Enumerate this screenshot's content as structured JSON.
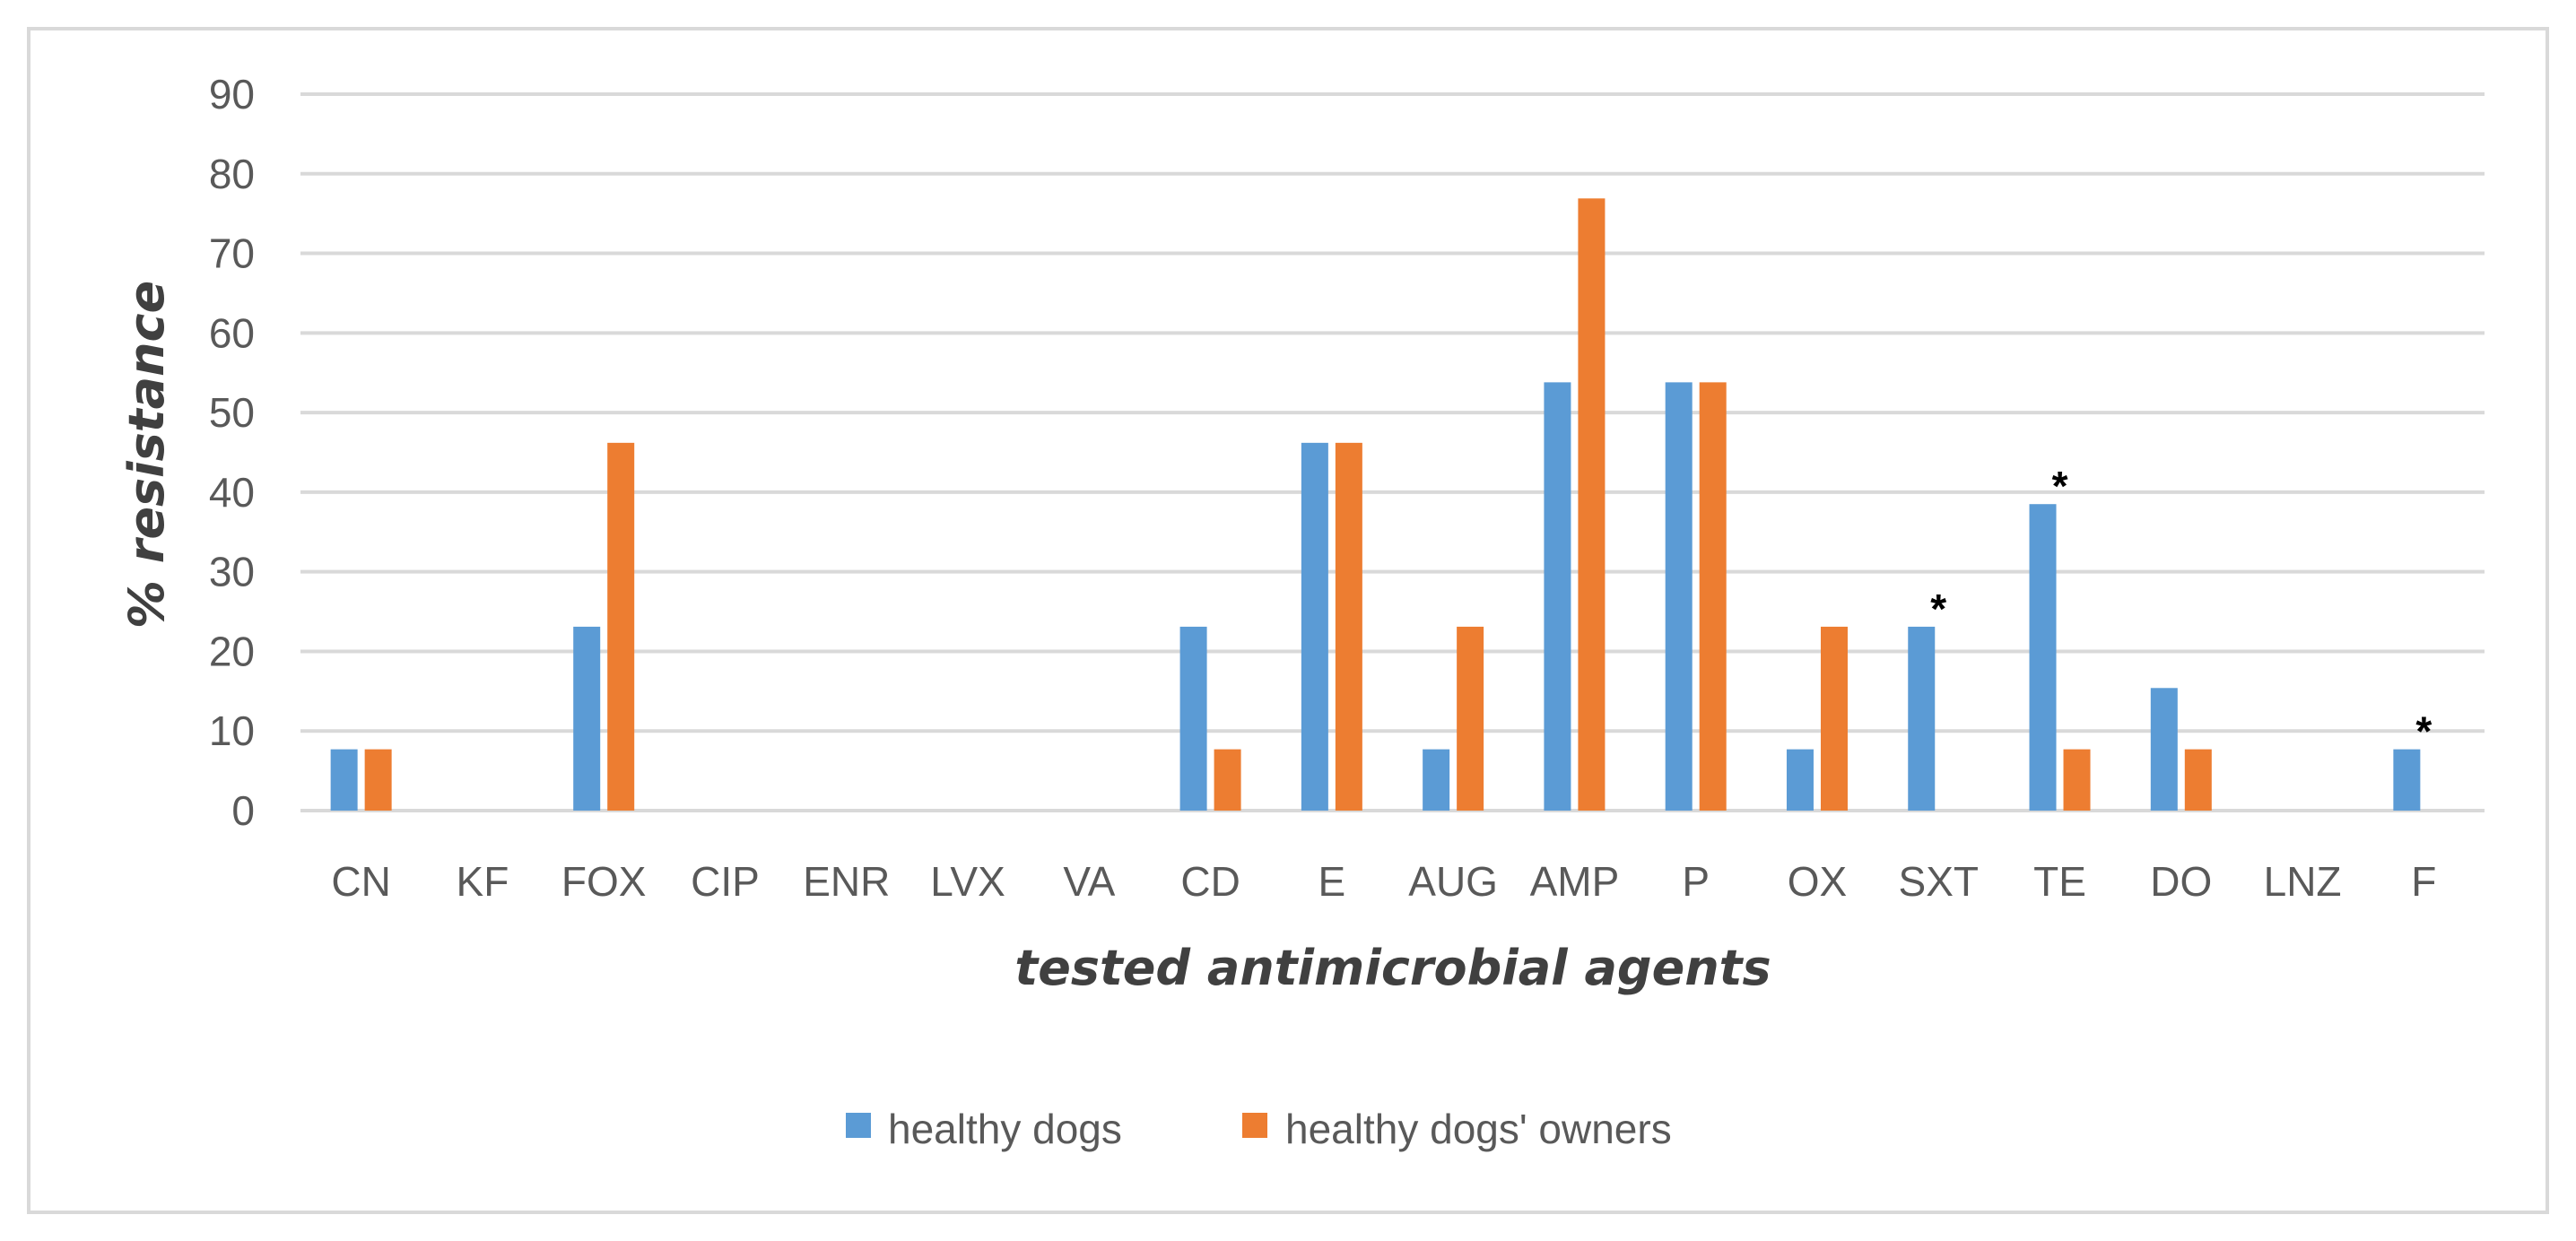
{
  "chart_data": {
    "type": "bar",
    "title": "",
    "xlabel": "tested antimicrobial agents",
    "ylabel": "% resistance",
    "ylim": [
      0,
      90
    ],
    "yticks": [
      0,
      10,
      20,
      30,
      40,
      50,
      60,
      70,
      80,
      90
    ],
    "grid": true,
    "legend_position": "bottom",
    "categories": [
      "CN",
      "KF",
      "FOX",
      "CIP",
      "ENR",
      "LVX",
      "VA",
      "CD",
      "E",
      "AUG",
      "AMP",
      "P",
      "OX",
      "SXT",
      "TE",
      "DO",
      "LNZ",
      "F"
    ],
    "series": [
      {
        "name": "healthy dogs",
        "color": "#5b9bd5",
        "values": [
          7.7,
          0,
          23.1,
          0,
          0,
          0,
          0,
          23.1,
          46.2,
          7.7,
          53.8,
          53.8,
          7.7,
          23.1,
          38.5,
          15.4,
          0,
          7.7
        ]
      },
      {
        "name": "healthy dogs' owners",
        "color": "#ed7d31",
        "values": [
          7.7,
          0,
          46.2,
          0,
          0,
          0,
          0,
          7.7,
          46.2,
          23.1,
          76.9,
          53.8,
          23.1,
          0,
          7.7,
          7.7,
          0,
          0
        ]
      }
    ],
    "annotations": [
      {
        "category": "SXT",
        "text": "*"
      },
      {
        "category": "TE",
        "text": "*"
      },
      {
        "category": "F",
        "text": "*"
      }
    ]
  }
}
